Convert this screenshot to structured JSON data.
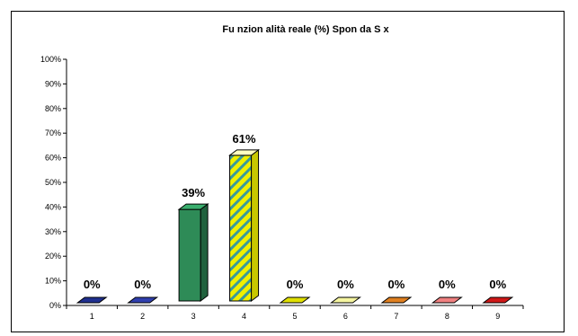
{
  "chart_data": {
    "type": "bar",
    "title": "Fu nzion alità reale (%) Spon da S x",
    "xlabel": "",
    "ylabel": "",
    "categories": [
      "1",
      "2",
      "3",
      "4",
      "5",
      "6",
      "7",
      "8",
      "9"
    ],
    "values": [
      0,
      0,
      39,
      61,
      0,
      0,
      0,
      0,
      0
    ],
    "data_labels": [
      "0%",
      "0%",
      "39%",
      "61%",
      "0%",
      "0%",
      "0%",
      "0%",
      "0%"
    ],
    "y_ticks": [
      "0%",
      "10%",
      "20%",
      "30%",
      "40%",
      "50%",
      "60%",
      "70%",
      "80%",
      "90%",
      "100%"
    ],
    "ylim": [
      0,
      100
    ],
    "grid": false,
    "legend": "none",
    "bar_colors": [
      "#1f2f8f",
      "#2f3fae",
      "#2e8b57",
      "#f0f000",
      "#e0e000",
      "#f5f5a0",
      "#e08020",
      "#f08080",
      "#d01818"
    ],
    "stripe_color": "#3a9a9a"
  }
}
